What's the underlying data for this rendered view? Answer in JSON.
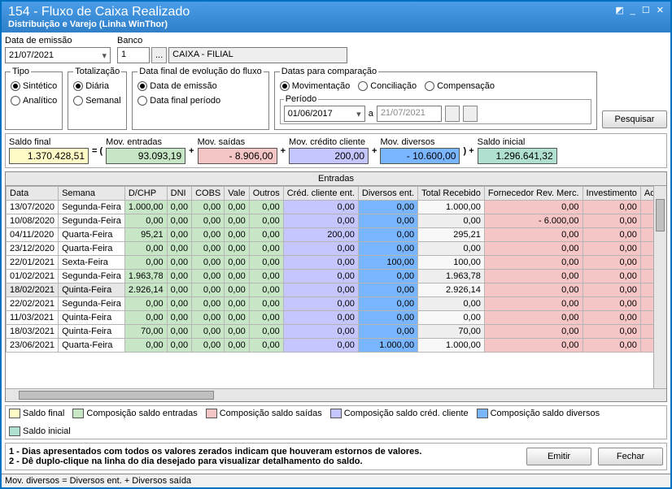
{
  "window": {
    "title": "154 - Fluxo de Caixa Realizado",
    "subtitle": "Distribuição e Varejo (Linha WinThor)"
  },
  "fields": {
    "data_emissao_label": "Data de emissão",
    "data_emissao": "21/07/2021",
    "banco_label": "Banco",
    "banco_cod": "1",
    "banco_btn": "...",
    "banco_nome": "CAIXA - FILIAL"
  },
  "tipo": {
    "legend": "Tipo",
    "sintetico": "Sintético",
    "analitico": "Analítico",
    "selected": "sintetico"
  },
  "totalizacao": {
    "legend": "Totalização",
    "diaria": "Diária",
    "semanal": "Semanal",
    "selected": "diaria"
  },
  "datafinal": {
    "legend": "Data final de evolução do fluxo",
    "emissao": "Data de emissão",
    "periodo": "Data final período",
    "selected": "emissao"
  },
  "compare": {
    "legend": "Datas para comparação",
    "mov": "Movimentação",
    "conc": "Conciliação",
    "comp": "Compensação",
    "selected": "mov",
    "periodo_label": "Período",
    "periodo_ini": "01/06/2017",
    "a": "a",
    "periodo_fim": "21/07/2021"
  },
  "pesquisar": "Pesquisar",
  "colors": {
    "saldo_final": "#fffbc6",
    "entradas": "#c6e6c6",
    "saidas": "#f6c6c6",
    "credito": "#c6c6ff",
    "diversos": "#7ab6ff",
    "inicial": "#b0e0d0"
  },
  "summary": [
    {
      "label": "Saldo final",
      "value": "1.370.428,51",
      "colorKey": "saldo_final",
      "after": " = ("
    },
    {
      "label": "Mov. entradas",
      "value": "93.093,19",
      "colorKey": "entradas",
      "after": "  +"
    },
    {
      "label": "Mov. saídas",
      "value": "- 8.906,00",
      "colorKey": "saidas",
      "after": "  +"
    },
    {
      "label": "Mov. crédito cliente",
      "value": "200,00",
      "colorKey": "credito",
      "after": "  +"
    },
    {
      "label": "Mov. diversos",
      "value": "- 10.600,00",
      "colorKey": "diversos",
      "after": " ) +"
    },
    {
      "label": "Saldo inicial",
      "value": "1.296.641,32",
      "colorKey": "inicial",
      "after": ""
    }
  ],
  "grid": {
    "top_header": "Entradas",
    "columns": [
      "Data",
      "Semana",
      "D/CHP",
      "DNI",
      "COBS",
      "Vale",
      "Outros",
      "Créd. cliente ent.",
      "Diversos ent.",
      "Total Recebido",
      "Fornecedor Rev. Merc.",
      "Investimento",
      "Adiantame"
    ],
    "col_bg": [
      "",
      "",
      "entradas",
      "entradas",
      "entradas",
      "entradas",
      "entradas",
      "credito",
      "diversos",
      "",
      "saidas",
      "saidas",
      "saidas"
    ],
    "rows": [
      [
        "13/07/2020",
        "Segunda-Feira",
        "1.000,00",
        "0,00",
        "0,00",
        "0,00",
        "0,00",
        "0,00",
        "0,00",
        "1.000,00",
        "0,00",
        "0,00",
        ""
      ],
      [
        "10/08/2020",
        "Segunda-Feira",
        "0,00",
        "0,00",
        "0,00",
        "0,00",
        "0,00",
        "0,00",
        "0,00",
        "0,00",
        "- 6.000,00",
        "0,00",
        ""
      ],
      [
        "04/11/2020",
        "Quarta-Feira",
        "95,21",
        "0,00",
        "0,00",
        "0,00",
        "0,00",
        "200,00",
        "0,00",
        "295,21",
        "0,00",
        "0,00",
        ""
      ],
      [
        "23/12/2020",
        "Quarta-Feira",
        "0,00",
        "0,00",
        "0,00",
        "0,00",
        "0,00",
        "0,00",
        "0,00",
        "0,00",
        "0,00",
        "0,00",
        ""
      ],
      [
        "22/01/2021",
        "Sexta-Feira",
        "0,00",
        "0,00",
        "0,00",
        "0,00",
        "0,00",
        "0,00",
        "100,00",
        "100,00",
        "0,00",
        "0,00",
        ""
      ],
      [
        "01/02/2021",
        "Segunda-Feira",
        "1.963,78",
        "0,00",
        "0,00",
        "0,00",
        "0,00",
        "0,00",
        "0,00",
        "1.963,78",
        "0,00",
        "0,00",
        ""
      ],
      [
        "18/02/2021",
        "Quinta-Feira",
        "2.926,14",
        "0,00",
        "0,00",
        "0,00",
        "0,00",
        "0,00",
        "0,00",
        "2.926,14",
        "0,00",
        "0,00",
        ""
      ],
      [
        "22/02/2021",
        "Segunda-Feira",
        "0,00",
        "0,00",
        "0,00",
        "0,00",
        "0,00",
        "0,00",
        "0,00",
        "0,00",
        "0,00",
        "0,00",
        ""
      ],
      [
        "11/03/2021",
        "Quinta-Feira",
        "0,00",
        "0,00",
        "0,00",
        "0,00",
        "0,00",
        "0,00",
        "0,00",
        "0,00",
        "0,00",
        "0,00",
        ""
      ],
      [
        "18/03/2021",
        "Quinta-Feira",
        "70,00",
        "0,00",
        "0,00",
        "0,00",
        "0,00",
        "0,00",
        "0,00",
        "70,00",
        "0,00",
        "0,00",
        ""
      ],
      [
        "23/06/2021",
        "Quarta-Feira",
        "0,00",
        "0,00",
        "0,00",
        "0,00",
        "0,00",
        "0,00",
        "1.000,00",
        "1.000,00",
        "0,00",
        "0,00",
        ""
      ]
    ],
    "selected_row": 6
  },
  "legend": [
    {
      "label": "Saldo final",
      "colorKey": "saldo_final"
    },
    {
      "label": "Composição saldo entradas",
      "colorKey": "entradas"
    },
    {
      "label": "Composição saldo saídas",
      "colorKey": "saidas"
    },
    {
      "label": "Composição saldo créd. cliente",
      "colorKey": "credito"
    },
    {
      "label": "Composição saldo diversos",
      "colorKey": "diversos"
    },
    {
      "label": "Saldo inicial",
      "colorKey": "inicial"
    }
  ],
  "notes": {
    "l1": "1 - Dias apresentados com todos os valores zerados indicam que houveram estornos de valores.",
    "l2": "2 - Dê duplo-clique na linha do dia desejado para visualizar detalhamento do saldo."
  },
  "buttons": {
    "emitir": "Emitir",
    "fechar": "Fechar"
  },
  "statusbar": "Mov. diversos = Diversos ent. + Diversos saída"
}
